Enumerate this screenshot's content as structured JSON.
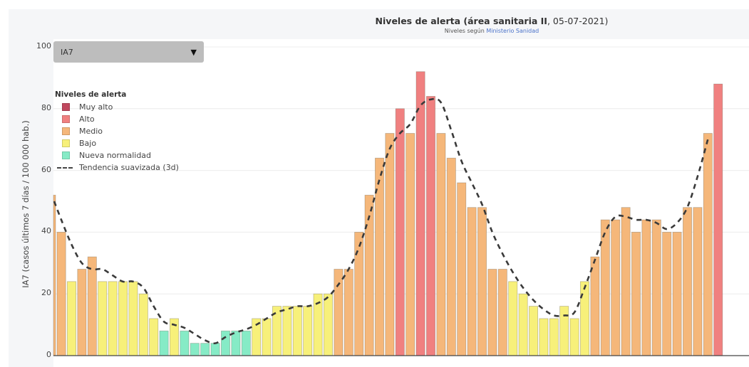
{
  "header": {
    "title_bold": "Niveles de alerta (área sanitaria II",
    "title_rest": ", 05-07-2021)",
    "subtitle_prefix": "Niveles según ",
    "subtitle_link": "Ministerio Sanidad"
  },
  "dropdown": {
    "selected": "IA7",
    "arrow": "▼"
  },
  "legend": {
    "title": "Niveles de alerta",
    "items": [
      {
        "label": "Muy alto",
        "color": "#c0485e"
      },
      {
        "label": "Alto",
        "color": "#f08080"
      },
      {
        "label": "Medio",
        "color": "#f5b77a"
      },
      {
        "label": "Bajo",
        "color": "#f7f07a"
      },
      {
        "label": "Nueva normalidad",
        "color": "#86ebc6"
      }
    ],
    "trend_label": "Tendencia suavizada (3d)"
  },
  "colors": {
    "Muy alto": "#c0485e",
    "Alto": "#f08080",
    "Medio": "#f5b77a",
    "Bajo": "#f7f07a",
    "Nueva normalidad": "#86ebc6",
    "trend": "#3a3a3a"
  },
  "chart_data": {
    "type": "bar",
    "title": "Niveles de alerta (área sanitaria II, 05-07-2021)",
    "subtitle": "Niveles según Ministerio Sanidad",
    "xlabel": "",
    "ylabel": "IA7 (casos últimos 7 días / 100 000 hab.)",
    "ylim": [
      0,
      100
    ],
    "yticks": [
      0,
      20,
      40,
      60,
      80,
      100
    ],
    "grid": true,
    "legend_position": "upper-left",
    "first_bar_partial": true,
    "values": [
      52,
      40,
      24,
      28,
      32,
      24,
      24,
      24,
      24,
      20,
      12,
      8,
      12,
      8,
      4,
      4,
      4,
      8,
      8,
      8,
      12,
      12,
      16,
      16,
      16,
      16,
      20,
      20,
      28,
      28,
      40,
      52,
      64,
      72,
      80,
      72,
      92,
      84,
      72,
      64,
      56,
      48,
      48,
      28,
      28,
      24,
      20,
      16,
      12,
      12,
      16,
      12,
      24,
      32,
      44,
      44,
      48,
      40,
      44,
      44,
      40,
      40,
      48,
      48,
      72,
      88
    ],
    "levels": [
      "Medio",
      "Medio",
      "Bajo",
      "Medio",
      "Medio",
      "Bajo",
      "Bajo",
      "Bajo",
      "Bajo",
      "Bajo",
      "Bajo",
      "Nueva normalidad",
      "Bajo",
      "Nueva normalidad",
      "Nueva normalidad",
      "Nueva normalidad",
      "Nueva normalidad",
      "Nueva normalidad",
      "Nueva normalidad",
      "Nueva normalidad",
      "Bajo",
      "Bajo",
      "Bajo",
      "Bajo",
      "Bajo",
      "Bajo",
      "Bajo",
      "Bajo",
      "Medio",
      "Medio",
      "Medio",
      "Medio",
      "Medio",
      "Medio",
      "Alto",
      "Medio",
      "Alto",
      "Alto",
      "Medio",
      "Medio",
      "Medio",
      "Medio",
      "Medio",
      "Medio",
      "Medio",
      "Bajo",
      "Bajo",
      "Bajo",
      "Bajo",
      "Bajo",
      "Bajo",
      "Bajo",
      "Bajo",
      "Medio",
      "Medio",
      "Medio",
      "Medio",
      "Medio",
      "Medio",
      "Medio",
      "Medio",
      "Medio",
      "Medio",
      "Medio",
      "Medio",
      "Alto"
    ],
    "trend": [
      50,
      44,
      36,
      30,
      28,
      28,
      26,
      24,
      24,
      22,
      16,
      11,
      10,
      9,
      7,
      5,
      4,
      6,
      7.5,
      8.5,
      10,
      12,
      14,
      15,
      16,
      16,
      17,
      19,
      23,
      28,
      35,
      45,
      57,
      67,
      72,
      75,
      81,
      83,
      82,
      73,
      63,
      56,
      49,
      40,
      33,
      27,
      22,
      18,
      15,
      13,
      13,
      14,
      22,
      31,
      40,
      45,
      45,
      44,
      44,
      43,
      41,
      43,
      48,
      58,
      70
    ]
  }
}
